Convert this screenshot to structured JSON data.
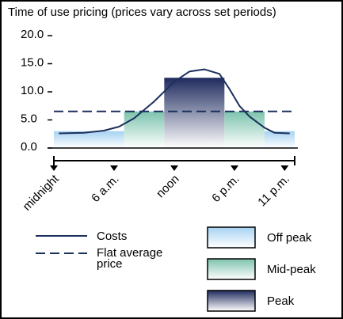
{
  "chart_data": {
    "type": "line",
    "title": "Time of use pricing (prices vary across set periods)",
    "xlim": [
      0,
      24
    ],
    "xticks": [
      {
        "value": 0,
        "label": "midnight"
      },
      {
        "value": 6,
        "label": "6 a.m."
      },
      {
        "value": 12,
        "label": "noon"
      },
      {
        "value": 18,
        "label": "6 p.m."
      },
      {
        "value": 23,
        "label": "11 p.m."
      }
    ],
    "ylim": [
      0,
      20
    ],
    "yticks": [
      {
        "value": 0,
        "label": "0.0"
      },
      {
        "value": 5,
        "label": "5.0"
      },
      {
        "value": 10,
        "label": "10.0"
      },
      {
        "value": 15,
        "label": "15.0"
      },
      {
        "value": 20,
        "label": "20.0"
      }
    ],
    "series": [
      {
        "name": "Costs",
        "color": "#1b2f5c",
        "style": "solid",
        "x": [
          0.5,
          3,
          5,
          6.5,
          8,
          10,
          12,
          13.5,
          15,
          16.5,
          17.5,
          18.5,
          19.5,
          21,
          22,
          23.5
        ],
        "values": [
          2.6,
          2.7,
          3.1,
          3.8,
          5.3,
          8.3,
          11.8,
          13.6,
          14,
          13.2,
          10.5,
          7.5,
          5.6,
          3.6,
          2.7,
          2.6
        ]
      },
      {
        "name": "Flat average price",
        "color": "#1b2f5c",
        "style": "dashed",
        "x": [
          0,
          24
        ],
        "values": [
          6.5,
          6.5
        ]
      }
    ],
    "bands": [
      {
        "name": "Off peak",
        "color": "#a6d2f2"
      },
      {
        "name": "Mid-peak",
        "color": "#7cc3ad"
      },
      {
        "name": "Peak",
        "color": "#1f2b5e"
      }
    ],
    "periods": [
      {
        "band": 0,
        "start": 0,
        "end": 7,
        "value": 3
      },
      {
        "band": 1,
        "start": 7,
        "end": 11,
        "value": 6.5
      },
      {
        "band": 2,
        "start": 11,
        "end": 17,
        "value": 12.5
      },
      {
        "band": 1,
        "start": 17,
        "end": 21,
        "value": 6.5
      },
      {
        "band": 0,
        "start": 21,
        "end": 24,
        "value": 3
      }
    ]
  }
}
